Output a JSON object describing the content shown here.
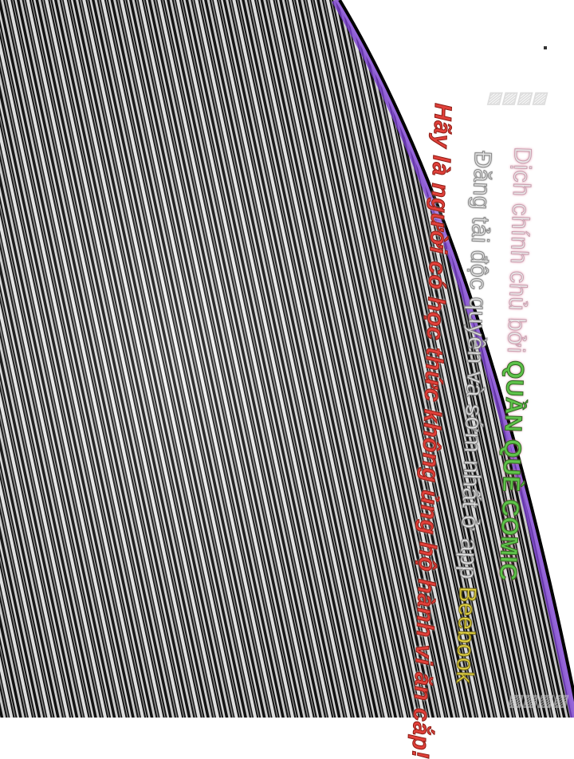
{
  "credits": {
    "line1_prefix": "Dịch chính chủ bởi ",
    "line1_group": "QUẦN QUÈ COMIC",
    "line2_prefix": "Đăng tải độc quyền và sớm nhất ở app ",
    "line2_app": "Beebook",
    "line3": "Hãy là người có học thức không ủng hộ hành vi ăn cắp!"
  },
  "colors": {
    "group_name": "#5fc24a",
    "app_name": "#e7d84a",
    "warning": "#e0403a",
    "panel_edge": "#7b3fd0"
  }
}
